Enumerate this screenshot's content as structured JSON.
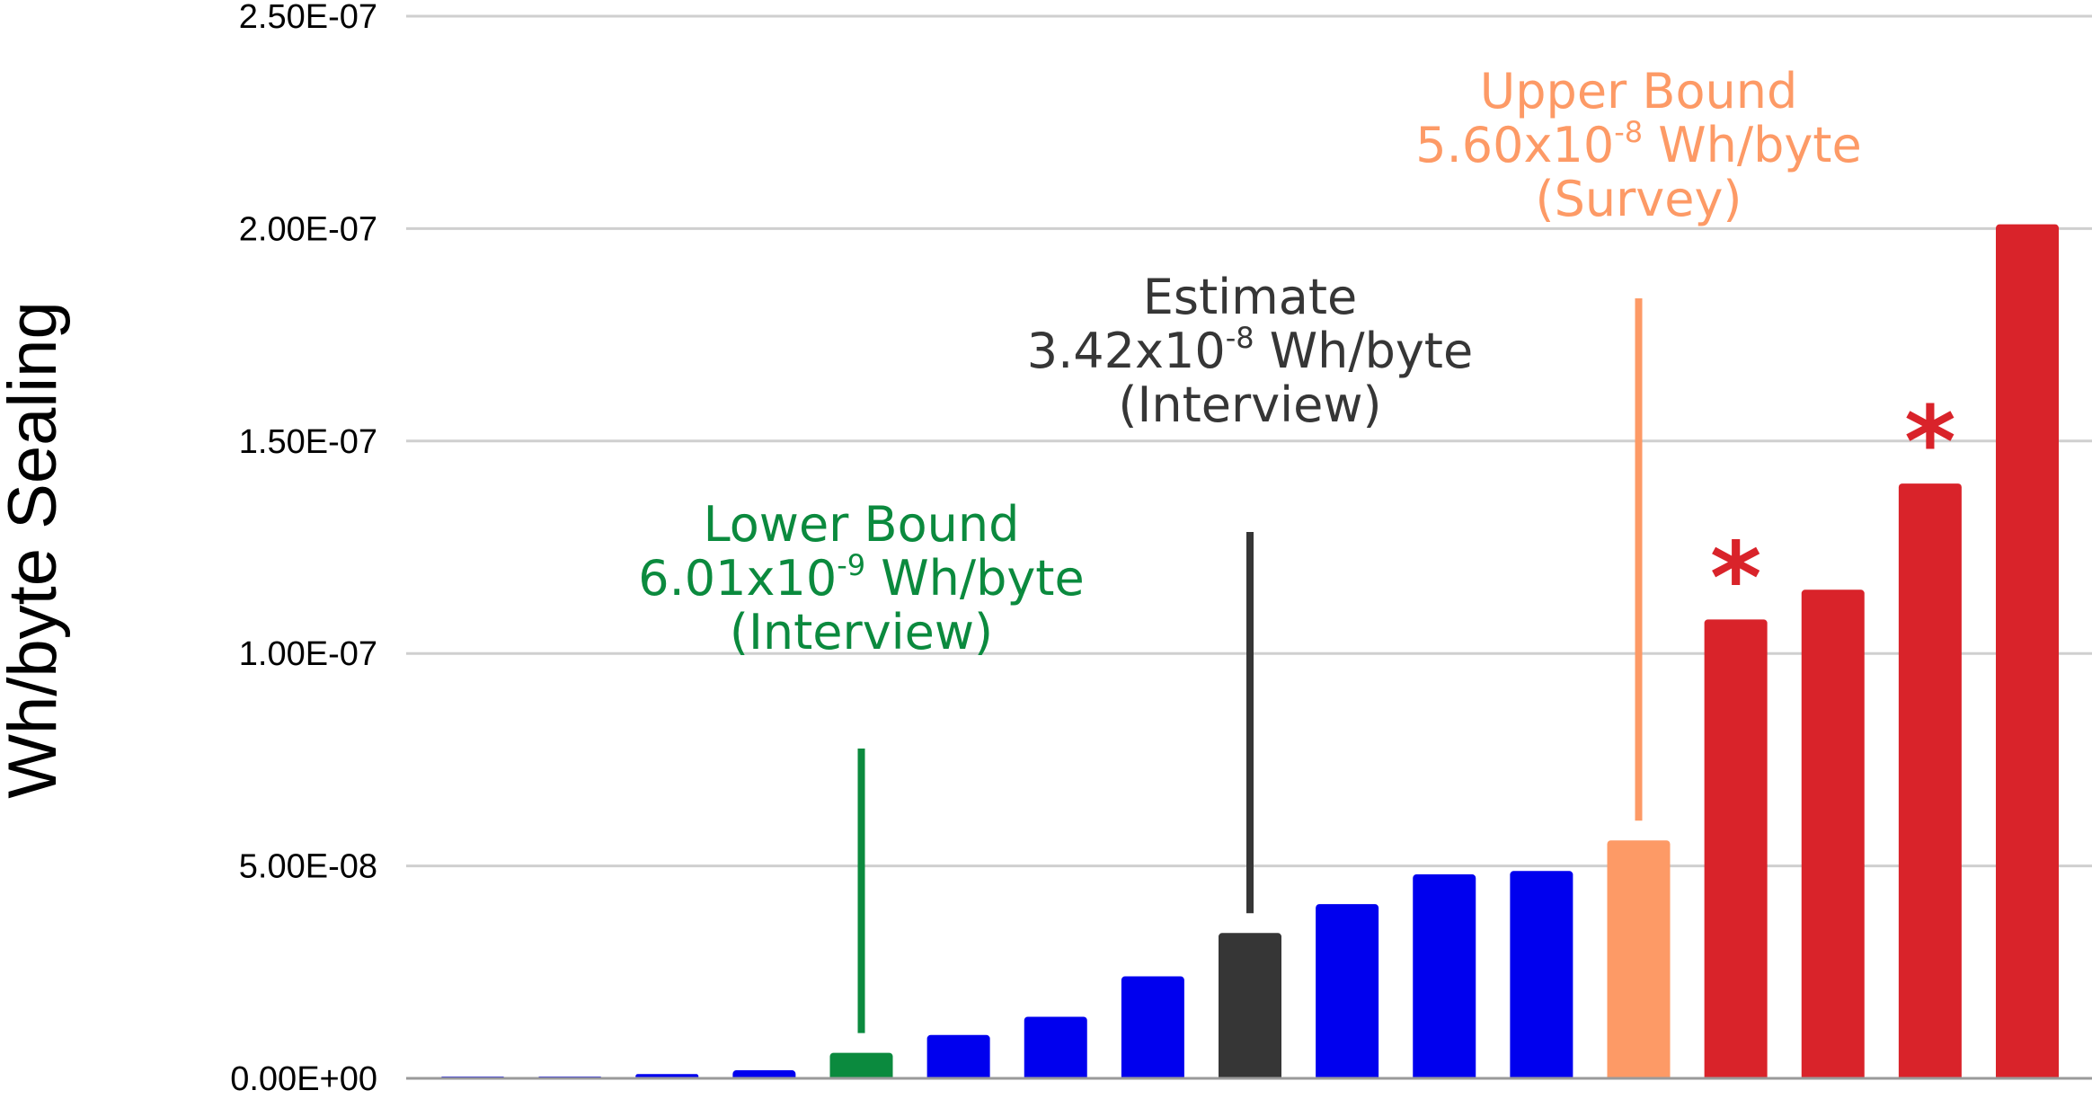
{
  "chart_data": {
    "type": "bar",
    "title": "",
    "xlabel": "",
    "ylabel": "Wh/byte Sealing",
    "ylim": [
      0,
      2.5e-07
    ],
    "y_ticks": [
      {
        "value": 0,
        "label": "0.00E+00"
      },
      {
        "value": 5e-08,
        "label": "5.00E-08"
      },
      {
        "value": 1e-07,
        "label": "1.00E-07"
      },
      {
        "value": 1.5e-07,
        "label": "1.50E-07"
      },
      {
        "value": 2e-07,
        "label": "2.00E-07"
      },
      {
        "value": 2.5e-07,
        "label": "2.50E-07"
      }
    ],
    "grid": true,
    "legend": "none",
    "colors": {
      "default": "#0000ee",
      "lower": "#0b8a3e",
      "estimate": "#363636",
      "upper": "#fd9a66",
      "high": "#d9232a"
    },
    "bars": [
      {
        "value": 2e-10,
        "group": "default"
      },
      {
        "value": 2e-10,
        "group": "default"
      },
      {
        "value": 1e-09,
        "group": "default"
      },
      {
        "value": 1.9e-09,
        "group": "default"
      },
      {
        "value": 6.01e-09,
        "group": "lower"
      },
      {
        "value": 1.02e-08,
        "group": "default"
      },
      {
        "value": 1.45e-08,
        "group": "default"
      },
      {
        "value": 2.4e-08,
        "group": "default"
      },
      {
        "value": 3.42e-08,
        "group": "estimate"
      },
      {
        "value": 4.1e-08,
        "group": "default"
      },
      {
        "value": 4.8e-08,
        "group": "default"
      },
      {
        "value": 4.88e-08,
        "group": "default"
      },
      {
        "value": 5.6e-08,
        "group": "upper"
      },
      {
        "value": 1.08e-07,
        "group": "high",
        "asterisk": "*"
      },
      {
        "value": 1.15e-07,
        "group": "high"
      },
      {
        "value": 1.4e-07,
        "group": "high",
        "asterisk": "*"
      },
      {
        "value": 2.01e-07,
        "group": "high"
      }
    ],
    "annotations": [
      {
        "bar_index": 4,
        "color": "#0b8a3e",
        "lines": [
          {
            "text": "Lower Bound"
          },
          {
            "base": "6.01x10",
            "exponent": "-9",
            "suffix": " Wh/byte"
          },
          {
            "text": "(Interview)"
          }
        ]
      },
      {
        "bar_index": 8,
        "color": "#363636",
        "lines": [
          {
            "text": "Estimate"
          },
          {
            "base": "3.42x10",
            "exponent": "-8",
            "suffix": " Wh/byte"
          },
          {
            "text": "(Interview)"
          }
        ]
      },
      {
        "bar_index": 12,
        "color": "#fd9a66",
        "lines": [
          {
            "text": "Upper Bound"
          },
          {
            "base": "5.60x10",
            "exponent": "-8",
            "suffix": " Wh/byte"
          },
          {
            "text": "(Survey)"
          }
        ]
      }
    ]
  }
}
